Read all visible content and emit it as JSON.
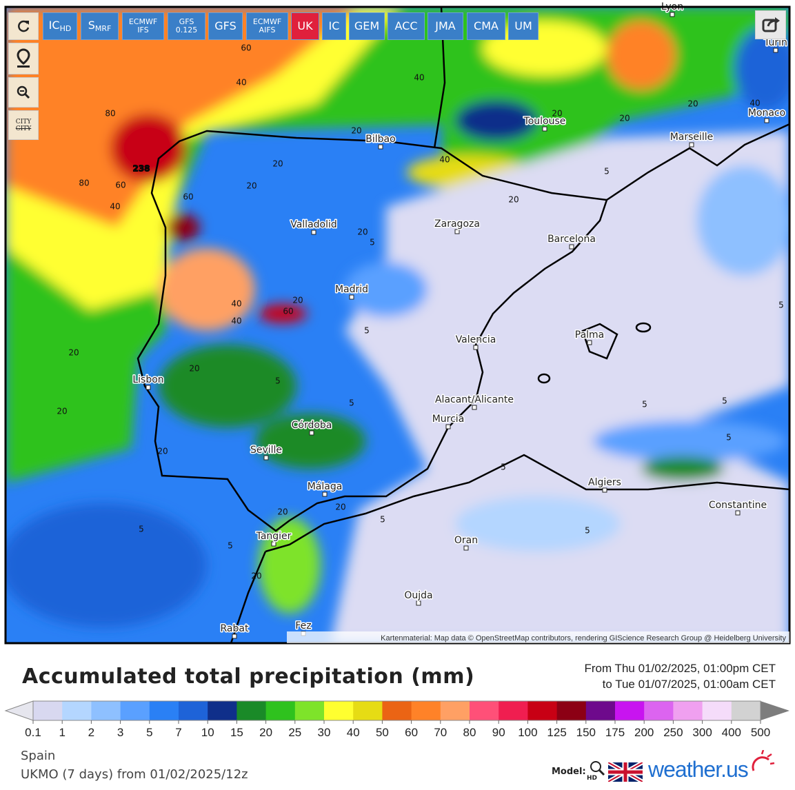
{
  "toolbar": {
    "models": [
      {
        "label": "IC",
        "sub": "HD"
      },
      {
        "label": "S",
        "sub": "MRF"
      },
      {
        "lines": [
          "ECMWF",
          "IFS"
        ]
      },
      {
        "lines": [
          "GFS",
          "0.125"
        ]
      },
      {
        "label": "GFS"
      },
      {
        "lines": [
          "ECMWF",
          "AIFS"
        ]
      },
      {
        "label": "UK",
        "active": true
      },
      {
        "label": "IC"
      },
      {
        "label": "GEM"
      },
      {
        "label": "ACC"
      },
      {
        "label": "JMA"
      },
      {
        "label": "CMA"
      },
      {
        "label": "UM"
      }
    ],
    "city_toggle": [
      "CITY",
      "CITY"
    ]
  },
  "map": {
    "cities": [
      "Lyon",
      "Turin",
      "Monaco",
      "Toulouse",
      "Marseille",
      "Bilbao",
      "Valladolid",
      "Zaragoza",
      "Barcelona",
      "Madrid",
      "Palma",
      "Valencia",
      "Lisbon",
      "Alacant/Alicante",
      "Murcia",
      "Córdoba",
      "Seville",
      "Málaga",
      "Algiers",
      "Constantine",
      "Tangier",
      "Oran",
      "Oujda",
      "Rabat",
      "Fez"
    ],
    "contour_labels": [
      60,
      40,
      40,
      80,
      80,
      60,
      40,
      60,
      238,
      20,
      20,
      20,
      40,
      20,
      20,
      20,
      20,
      40,
      20,
      5,
      5,
      20,
      60,
      40,
      40,
      20,
      20,
      20,
      5,
      5,
      5,
      20,
      5,
      5,
      5,
      5,
      5,
      5,
      20,
      20,
      5,
      5,
      5,
      20
    ],
    "attribution": "Kartenmaterial: Map data © OpenStreetMap contributors, rendering GIScience Research Group @ Heidelberg University"
  },
  "legend": {
    "title": "Accumulated total precipitation (mm)",
    "period": [
      "From Thu 01/02/2025, 01:00pm CET",
      "to Tue 01/07/2025, 01:00am CET"
    ],
    "labels": [
      0.1,
      1,
      2,
      3,
      5,
      7,
      10,
      15,
      20,
      25,
      30,
      40,
      50,
      60,
      70,
      80,
      90,
      100,
      125,
      150,
      175,
      200,
      250,
      300,
      400,
      500
    ],
    "colors": [
      "#e6e6ee",
      "#d8d8f0",
      "#b4d6ff",
      "#8ec0ff",
      "#5aa0ff",
      "#2a80f5",
      "#1e63d8",
      "#0f2f8a",
      "#1a8a28",
      "#2fc21e",
      "#7ee32a",
      "#ffff30",
      "#e6dc14",
      "#eb6414",
      "#ff8228",
      "#ffa064",
      "#ff5078",
      "#f01e50",
      "#c80014",
      "#8c0014",
      "#6e0a8c",
      "#c814f0",
      "#dc64f0",
      "#f0a0f0",
      "#f5dcfa",
      "#d2d2d2",
      "#7d7d7d"
    ]
  },
  "footer": {
    "region": "Spain",
    "run": "UKMO (7 days) from 01/02/2025/12z",
    "model_label": "Model:",
    "hd": "HD",
    "brand": "weather.us"
  }
}
